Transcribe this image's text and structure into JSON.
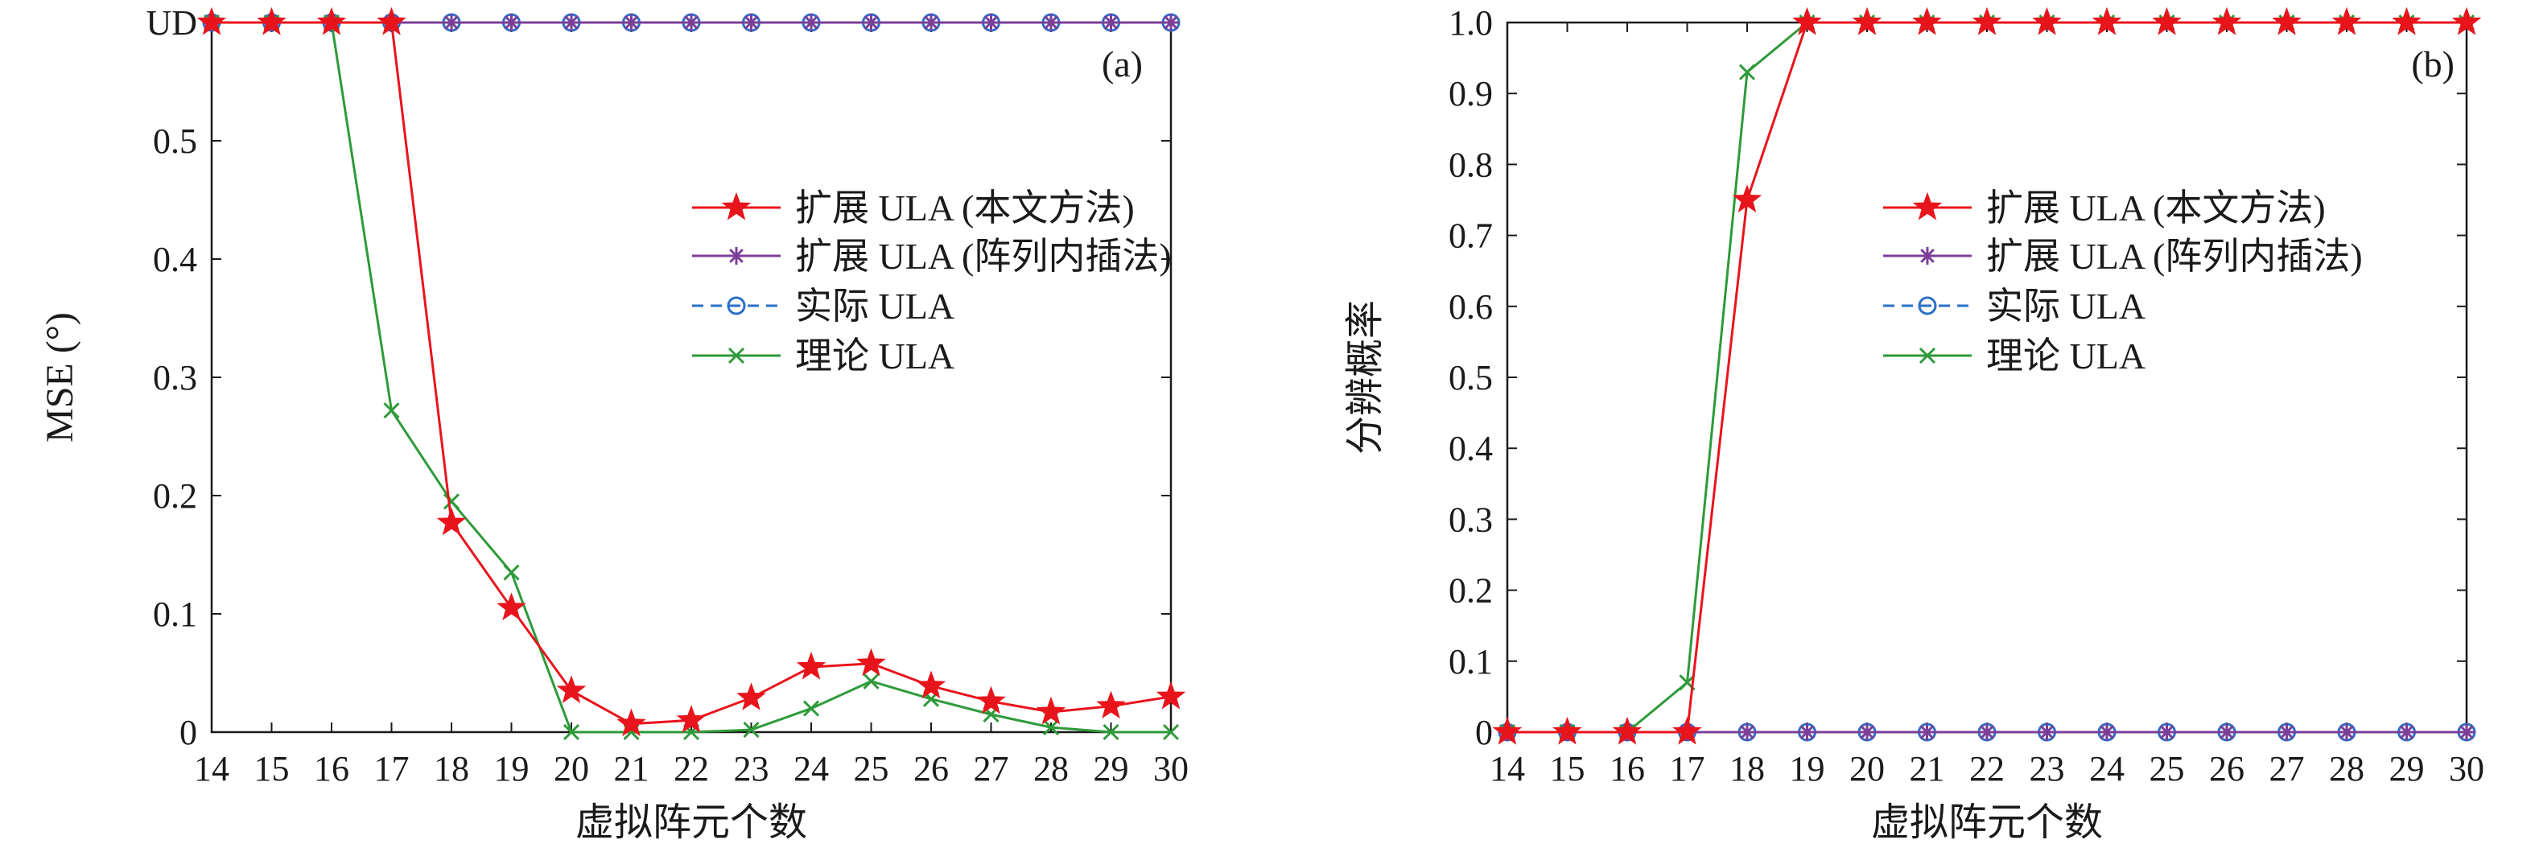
{
  "chart_data": [
    {
      "type": "line",
      "panel_label": "(a)",
      "xlabel": "虚拟阵元个数",
      "ylabel": "MSE (°)",
      "x": [
        14,
        15,
        16,
        17,
        18,
        19,
        20,
        21,
        22,
        23,
        24,
        25,
        26,
        27,
        28,
        29,
        30
      ],
      "xlim": [
        14,
        30
      ],
      "ylim": [
        0,
        0.6
      ],
      "yticks": [
        {
          "value": 0,
          "label": "0"
        },
        {
          "value": 0.1,
          "label": "0.1"
        },
        {
          "value": 0.2,
          "label": "0.2"
        },
        {
          "value": 0.3,
          "label": "0.3"
        },
        {
          "value": 0.4,
          "label": "0.4"
        },
        {
          "value": 0.5,
          "label": "0.5"
        },
        {
          "value": 0.6,
          "label": "UD"
        }
      ],
      "grid": false,
      "legend_position": "middle-right",
      "series": [
        {
          "name": "扩展 ULA (本文方法)",
          "color": "#e8141c",
          "line": "solid",
          "marker": "star",
          "values": [
            0.6,
            0.6,
            0.6,
            0.6,
            0.177,
            0.105,
            0.035,
            0.007,
            0.01,
            0.029,
            0.055,
            0.058,
            0.039,
            0.026,
            0.017,
            0.022,
            0.03
          ]
        },
        {
          "name": "扩展 ULA (阵列内插法)",
          "color": "#7b3f98",
          "line": "solid",
          "marker": "asterisk",
          "values": [
            0.6,
            0.6,
            0.6,
            0.6,
            0.6,
            0.6,
            0.6,
            0.6,
            0.6,
            0.6,
            0.6,
            0.6,
            0.6,
            0.6,
            0.6,
            0.6,
            0.6
          ]
        },
        {
          "name": "实际 ULA",
          "color": "#2a6fc9",
          "line": "dashed",
          "marker": "circle",
          "values": [
            0.6,
            0.6,
            0.6,
            0.6,
            0.6,
            0.6,
            0.6,
            0.6,
            0.6,
            0.6,
            0.6,
            0.6,
            0.6,
            0.6,
            0.6,
            0.6,
            0.6
          ]
        },
        {
          "name": "理论 ULA",
          "color": "#2e9a3a",
          "line": "solid",
          "marker": "x",
          "values": [
            0.6,
            0.6,
            0.6,
            0.272,
            0.195,
            0.135,
            0.0,
            0.0,
            0.0,
            0.002,
            0.02,
            0.043,
            0.028,
            0.015,
            0.004,
            0.0,
            0.0
          ]
        }
      ]
    },
    {
      "type": "line",
      "panel_label": "(b)",
      "xlabel": "虚拟阵元个数",
      "ylabel": "分辨概率",
      "x": [
        14,
        15,
        16,
        17,
        18,
        19,
        20,
        21,
        22,
        23,
        24,
        25,
        26,
        27,
        28,
        29,
        30
      ],
      "xlim": [
        14,
        30
      ],
      "ylim": [
        0,
        1.0
      ],
      "yticks": [
        {
          "value": 0,
          "label": "0"
        },
        {
          "value": 0.1,
          "label": "0.1"
        },
        {
          "value": 0.2,
          "label": "0.2"
        },
        {
          "value": 0.3,
          "label": "0.3"
        },
        {
          "value": 0.4,
          "label": "0.4"
        },
        {
          "value": 0.5,
          "label": "0.5"
        },
        {
          "value": 0.6,
          "label": "0.6"
        },
        {
          "value": 0.7,
          "label": "0.7"
        },
        {
          "value": 0.8,
          "label": "0.8"
        },
        {
          "value": 0.9,
          "label": "0.9"
        },
        {
          "value": 1.0,
          "label": "1.0"
        }
      ],
      "grid": false,
      "legend_position": "middle-right",
      "series": [
        {
          "name": "扩展 ULA (本文方法)",
          "color": "#e8141c",
          "line": "solid",
          "marker": "star",
          "values": [
            0,
            0,
            0,
            0,
            0.75,
            1,
            1,
            1,
            1,
            1,
            1,
            1,
            1,
            1,
            1,
            1,
            1
          ]
        },
        {
          "name": "扩展 ULA (阵列内插法)",
          "color": "#7b3f98",
          "line": "solid",
          "marker": "asterisk",
          "values": [
            0,
            0,
            0,
            0,
            0,
            0,
            0,
            0,
            0,
            0,
            0,
            0,
            0,
            0,
            0,
            0,
            0
          ]
        },
        {
          "name": "实际 ULA",
          "color": "#2a6fc9",
          "line": "dashed",
          "marker": "circle",
          "values": [
            0,
            0,
            0,
            0,
            0,
            0,
            0,
            0,
            0,
            0,
            0,
            0,
            0,
            0,
            0,
            0,
            0
          ]
        },
        {
          "name": "理论 ULA",
          "color": "#2e9a3a",
          "line": "solid",
          "marker": "x",
          "values": [
            0,
            0,
            0,
            0.07,
            0.93,
            1,
            1,
            1,
            1,
            1,
            1,
            1,
            1,
            1,
            1,
            1,
            1
          ]
        }
      ]
    }
  ]
}
